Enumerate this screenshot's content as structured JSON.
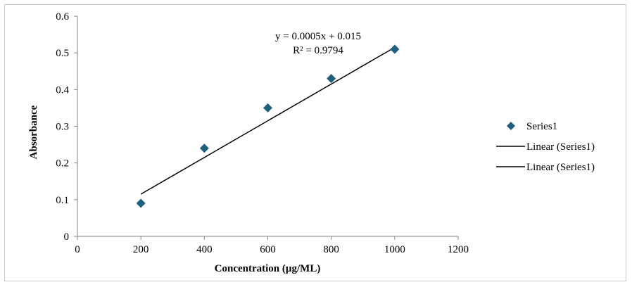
{
  "chart_data": {
    "type": "scatter",
    "title": "",
    "xlabel": "Concentration (µg/ML)",
    "ylabel": "Absorbance",
    "xlim": [
      0,
      1200
    ],
    "ylim": [
      0,
      0.6
    ],
    "xticks": [
      0,
      200,
      400,
      600,
      800,
      1000,
      1200
    ],
    "yticks": [
      0,
      0.1,
      0.2,
      0.3,
      0.4,
      0.5,
      0.6
    ],
    "xtick_labels": [
      "0",
      "200",
      "400",
      "600",
      "800",
      "1000",
      "1200"
    ],
    "ytick_labels": [
      "0",
      "0.1",
      "0.2",
      "0.3",
      "0.4",
      "0.5",
      "0.6"
    ],
    "grid": false,
    "legend_position": "right",
    "series": [
      {
        "name": "Series1",
        "marker": "diamond",
        "color": "#1f5f7f",
        "x": [
          200,
          400,
          600,
          800,
          1000
        ],
        "y": [
          0.09,
          0.24,
          0.35,
          0.43,
          0.51
        ]
      }
    ],
    "trendline": {
      "slope": 0.0005,
      "intercept": 0.015,
      "x_range": [
        200,
        1000
      ],
      "color": "#000000",
      "equation": "y = 0.0005x + 0.015",
      "r_squared": "R² = 0.9794"
    },
    "legend": [
      {
        "label": "Series1",
        "kind": "marker"
      },
      {
        "label": "Linear (Series1)",
        "kind": "line"
      },
      {
        "label": "Linear (Series1)",
        "kind": "line"
      }
    ]
  }
}
